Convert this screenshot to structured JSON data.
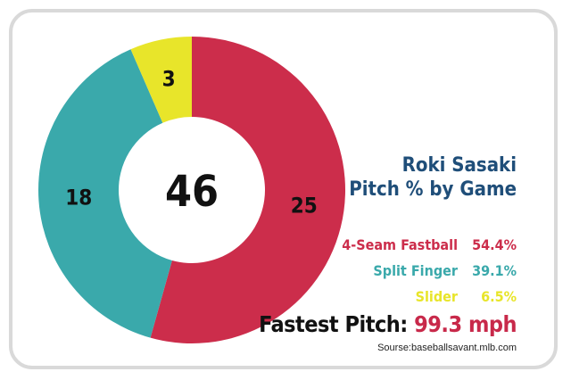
{
  "chart_data": {
    "type": "pie",
    "subtype": "donut",
    "center_label": "46",
    "categories": [
      "4-Seam Fastball",
      "Split Finger",
      "Slider"
    ],
    "values": [
      25,
      18,
      3
    ],
    "data_labels": [
      "25",
      "18",
      "3"
    ],
    "percent_labels": [
      "54.4%",
      "39.1%",
      "6.5%"
    ],
    "colors": [
      "#cc2d4b",
      "#3aa9ab",
      "#e8e52a"
    ],
    "start_angle_deg": 0,
    "direction": "clockwise"
  },
  "title_lines": [
    "Roki Sasaki",
    "Pitch % by Game"
  ],
  "fastest": {
    "label": "Fastest Pitch:",
    "value": "99.3 mph"
  },
  "source": "Sourse:baseballsavant.mlb.com"
}
